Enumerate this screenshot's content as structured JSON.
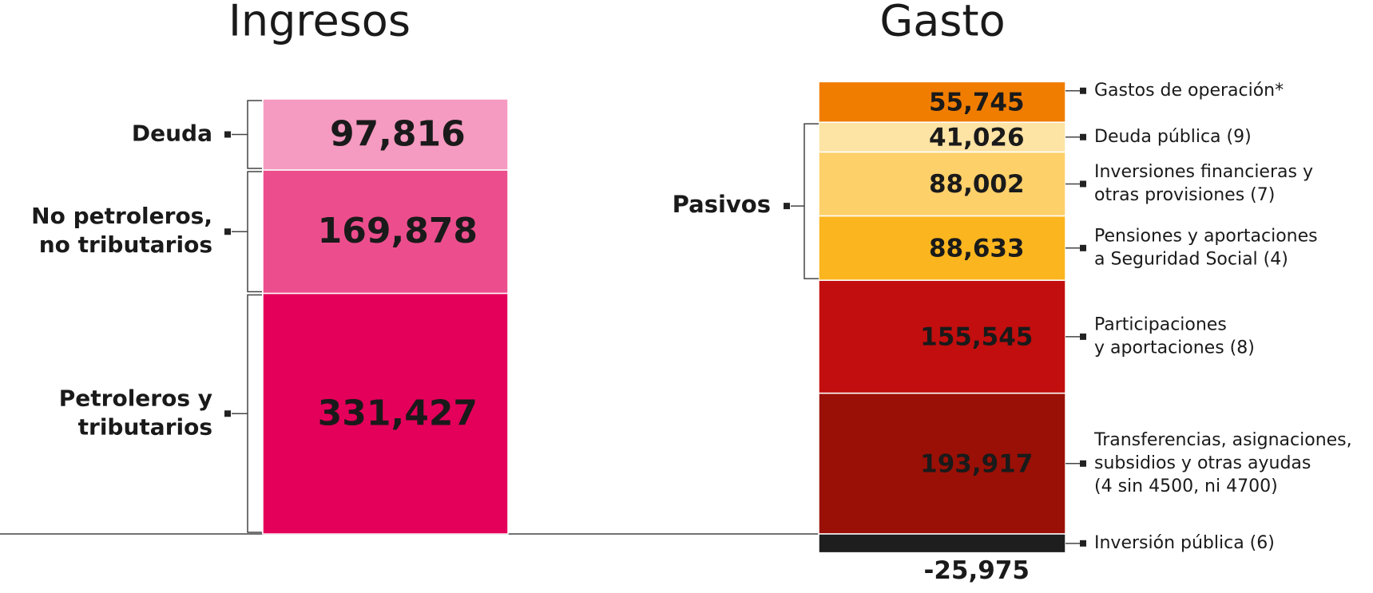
{
  "chart_data": [
    {
      "type": "stacked_bar",
      "title": "Ingresos",
      "categories": [
        "Petroleros y\ntributarios",
        "No petroleros,\nno tributarios",
        "Deuda"
      ],
      "values": [
        331427,
        169878,
        97816
      ],
      "value_labels": [
        "331,427",
        "169,878",
        "97,816"
      ],
      "colors": [
        "#e4005a",
        "#ec4e8d",
        "#f59ac0"
      ],
      "label_colors": [
        "#ffffff",
        "#ffffff",
        "#ffffff"
      ]
    },
    {
      "type": "stacked_bar",
      "title": "Gasto",
      "categories": [
        "Transferencias, asignaciones,\nsubsidios y otras ayudas\n(4 sin 4500, ni 4700)",
        "Participaciones\ny aportaciones (8)",
        "Pensiones y aportaciones\na Seguridad Social (4)",
        "Inversiones financieras y\notras provisiones (7)",
        "Deuda pública (9)",
        "Gastos de operación*",
        "Inversión pública (6)"
      ],
      "values": [
        193917,
        155545,
        88633,
        88002,
        41026,
        55745,
        -25975
      ],
      "value_labels": [
        "193,917",
        "155,545",
        "88,633",
        "88,002",
        "41,026",
        "55,745",
        "-25,975"
      ],
      "colors": [
        "#9a1006",
        "#c20e0e",
        "#fbb51f",
        "#fdd06a",
        "#fde3a4",
        "#f07d00",
        "#1e1e1e"
      ],
      "label_colors": [
        "#ffffff",
        "#ffffff",
        "#222222",
        "#222222",
        "#222222",
        "#ffffff",
        "#222222"
      ],
      "group_label": "Pasivos"
    }
  ]
}
